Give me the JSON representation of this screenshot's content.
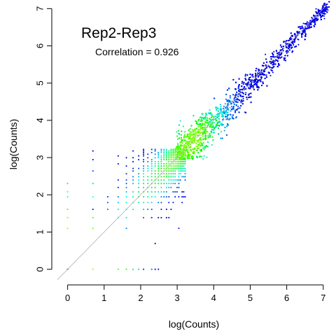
{
  "chart_data": {
    "type": "scatter",
    "title": "Rep2-Rep3",
    "annotation": "Correlation = 0.926",
    "xlabel": "log(Counts)",
    "ylabel": "log(Counts)",
    "xlim": [
      -0.28,
      7.1
    ],
    "ylim": [
      -0.25,
      7.1
    ],
    "x_ticks": [
      0,
      1,
      2,
      3,
      4,
      5,
      6,
      7
    ],
    "y_ticks": [
      0,
      1,
      2,
      3,
      4,
      5,
      6,
      7
    ],
    "reference_line": {
      "intercept": 0,
      "slope": 1,
      "color": "#b0b0b0"
    },
    "grid": false,
    "color_scale": "density (rainbow: blue = low density, green/yellow = high density)",
    "discrete_levels": [
      0,
      0.693,
      1.099,
      1.386,
      1.609,
      1.792,
      1.946,
      2.079,
      2.197,
      2.303,
      2.398,
      2.485,
      2.565,
      2.639,
      2.708,
      2.773,
      2.833,
      2.89,
      2.944,
      2.996,
      3.045,
      3.091,
      3.135,
      3.178,
      3.219
    ],
    "cluster_points": [
      {
        "x": 0.0,
        "y": 0.0,
        "color": "#ff0000"
      },
      {
        "x": 0.693,
        "y": 0.0,
        "color": "#aaff00"
      },
      {
        "x": 1.386,
        "y": 0.0,
        "color": "#55ff00"
      },
      {
        "x": 1.609,
        "y": 0.0,
        "color": "#33ff33"
      },
      {
        "x": 1.792,
        "y": 0.0,
        "color": "#22ee55"
      },
      {
        "x": 1.946,
        "y": 0.0,
        "color": "#11ddaa"
      },
      {
        "x": 2.079,
        "y": 0.0,
        "color": "#0022ff"
      },
      {
        "x": 2.303,
        "y": 0.0,
        "color": "#2266ff"
      },
      {
        "x": 2.398,
        "y": 0.0,
        "color": "#0000ff"
      },
      {
        "x": 2.485,
        "y": 0.0,
        "color": "#0000ff"
      },
      {
        "x": 0.0,
        "y": 1.099,
        "color": "#88ff00"
      },
      {
        "x": 0.0,
        "y": 1.386,
        "color": "#88ff00"
      },
      {
        "x": 0.0,
        "y": 1.609,
        "color": "#66ff22"
      },
      {
        "x": 0.0,
        "y": 1.946,
        "color": "#33ff66"
      },
      {
        "x": 0.0,
        "y": 2.079,
        "color": "#22ffaa"
      },
      {
        "x": 0.0,
        "y": 2.303,
        "color": "#22ddcc"
      },
      {
        "x": 0.693,
        "y": 1.099,
        "color": "#66ff11"
      },
      {
        "x": 0.693,
        "y": 1.386,
        "color": "#55ff22"
      },
      {
        "x": 0.693,
        "y": 1.946,
        "color": "#22ffbb"
      },
      {
        "x": 0.693,
        "y": 2.303,
        "color": "#11ccff"
      },
      {
        "x": 0.693,
        "y": 2.639,
        "color": "#0044ff"
      },
      {
        "x": 0.693,
        "y": 2.944,
        "color": "#0000ff"
      },
      {
        "x": 0.693,
        "y": 3.178,
        "color": "#0000ff"
      }
    ]
  }
}
